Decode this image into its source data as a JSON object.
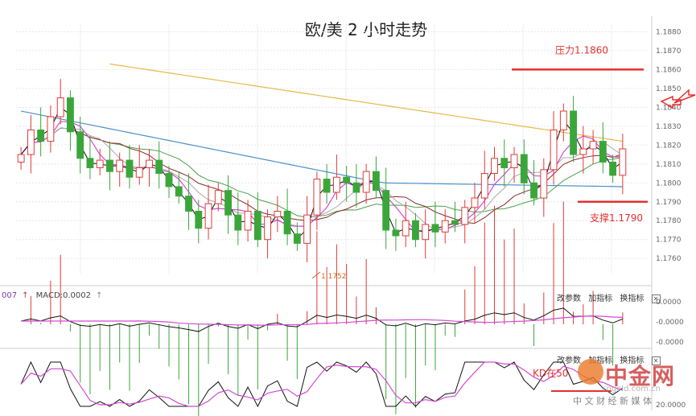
{
  "chart_data": {
    "type": "candlestick",
    "title": "欧/美 2 小时走势",
    "price_ticks": [
      "1.1880",
      "1.1870",
      "1.1860",
      "1.1850",
      "1.1840",
      "1.1830",
      "1.1820",
      "1.1810",
      "1.1800",
      "1.1790",
      "1.1780",
      "1.1770",
      "1.1760"
    ],
    "ylim": [
      1.1752,
      1.1884
    ],
    "resistance": {
      "label": "压力1.1860",
      "value": 1.186
    },
    "support": {
      "label": "支撑1.1790",
      "value": 1.179
    },
    "low_marker": {
      "label": "1.1752",
      "value": 1.1752
    },
    "close_path": [
      1.1815,
      1.1828,
      1.1822,
      1.1835,
      1.1845,
      1.1827,
      1.1813,
      1.1808,
      1.1812,
      1.1806,
      1.1812,
      1.1803,
      1.1808,
      1.1812,
      1.1805,
      1.1798,
      1.1793,
      1.1785,
      1.1776,
      1.1789,
      1.1796,
      1.1783,
      1.1775,
      1.1785,
      1.177,
      1.1782,
      1.1785,
      1.1773,
      1.1768,
      1.1783,
      1.1802,
      1.1795,
      1.1803,
      1.18,
      1.1795,
      1.1806,
      1.1796,
      1.1775,
      1.1772,
      1.178,
      1.177,
      1.1778,
      1.1774,
      1.178,
      1.1778,
      1.1787,
      1.1792,
      1.1805,
      1.1813,
      1.1808,
      1.1815,
      1.18,
      1.1792,
      1.1807,
      1.1828,
      1.1838,
      1.1815,
      1.1818,
      1.1822,
      1.1811,
      1.1804,
      1.1818
    ],
    "ma_slow": {
      "start": 1.187,
      "end": 1.1822,
      "color": "#e8b84a"
    },
    "ma_mid": {
      "start": 1.1838,
      "mid": 1.18,
      "end": 1.1798,
      "color": "#4a90c8"
    },
    "macd": {
      "label": "MACD:0.0002",
      "prefix": "007",
      "ticks": [
        "0.0000",
        "-0.0000",
        "-0.0000"
      ],
      "actions": [
        "改参数",
        "加指标",
        "换指标"
      ]
    },
    "kd": {
      "ticks": [
        "20.0000"
      ],
      "actions": [
        "改参数",
        "加指标",
        "换指标"
      ],
      "annotation": "KD在50"
    }
  },
  "watermark": {
    "brand": "中金网",
    "tagline": "中 文 财 经 新 媒 体",
    "site": "cngold.com.cn"
  },
  "colors": {
    "up": "#e03a3a",
    "down": "#3aa63a",
    "level_line": "#e53030"
  }
}
